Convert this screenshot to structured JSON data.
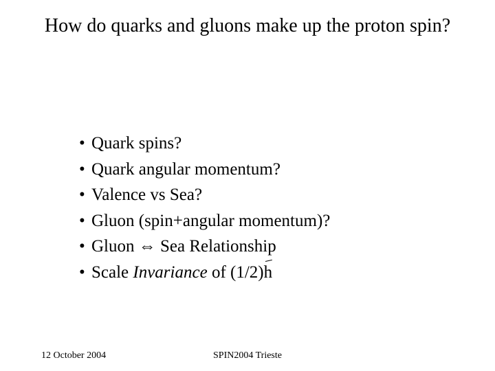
{
  "title": "How do quarks and gluons make up the proton spin?",
  "bullets": {
    "b0": "Quark spins?",
    "b1": "Quark angular momentum?",
    "b2": "Valence vs Sea?",
    "b3": "Gluon (spin+angular momentum)?",
    "b4_pre": "Gluon ",
    "b4_sym": "⇔",
    "b4_post": " Sea Relationship",
    "b5_pre": "Scale ",
    "b5_it": "Invariance",
    "b5_mid": " of (1/2)",
    "b5_h": "h"
  },
  "footer": {
    "date": "12 October 2004",
    "venue": "SPIN2004 Trieste"
  },
  "style": {
    "bg": "#ffffff",
    "fg": "#000000",
    "title_fontsize": 28,
    "body_fontsize": 25,
    "footer_fontsize": 14
  }
}
